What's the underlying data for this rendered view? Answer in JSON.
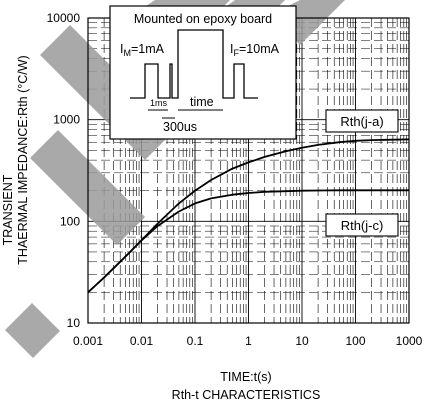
{
  "chart_data": {
    "type": "line",
    "x_scale": "log",
    "y_scale": "log",
    "xlim": [
      0.001,
      1000
    ],
    "ylim": [
      10,
      10000
    ],
    "grid": true,
    "x_ticks": [
      "0.001",
      "0.01",
      "0.1",
      "1",
      "10",
      "100",
      "1000"
    ],
    "y_ticks": [
      "10",
      "100",
      "1000",
      "10000"
    ],
    "xlabel": "TIME:t(s)",
    "ylabel_line1": "TRANSIENT",
    "ylabel_line2": "THAERMAL IMPEDANCE:Rth (°C/W)",
    "subtitle": "Rth-t CHARACTERISTICS",
    "series": [
      {
        "name": "Rth(j-a)",
        "x": [
          0.001,
          0.002,
          0.005,
          0.01,
          0.02,
          0.05,
          0.1,
          0.2,
          0.5,
          1,
          2,
          5,
          10,
          20,
          50,
          100,
          200,
          500,
          1000
        ],
        "y": [
          20,
          28,
          45,
          65,
          95,
          150,
          200,
          255,
          330,
          380,
          430,
          490,
          530,
          565,
          600,
          620,
          630,
          635,
          640
        ]
      },
      {
        "name": "Rth(j-c)",
        "x": [
          0.001,
          0.002,
          0.005,
          0.01,
          0.02,
          0.05,
          0.1,
          0.2,
          0.5,
          1,
          2,
          5,
          10,
          20,
          50,
          100,
          200,
          500,
          1000
        ],
        "y": [
          20,
          28,
          45,
          65,
          90,
          125,
          150,
          168,
          183,
          190,
          195,
          198,
          200,
          201,
          202,
          202,
          202,
          202,
          202
        ]
      }
    ],
    "annotations": {
      "inset_title": "Mounted on epoxy board",
      "im_label": "I",
      "im_sub": "M",
      "im_value": "=1mA",
      "if_label": "I",
      "if_sub": "F",
      "if_value": "=10mA",
      "pulse_1ms": "1ms",
      "pulse_time": "time",
      "pulse_300us": "300us"
    }
  },
  "colors": {
    "line": "#000000",
    "grid": "#000000",
    "watermark": "#9a9a9a"
  }
}
